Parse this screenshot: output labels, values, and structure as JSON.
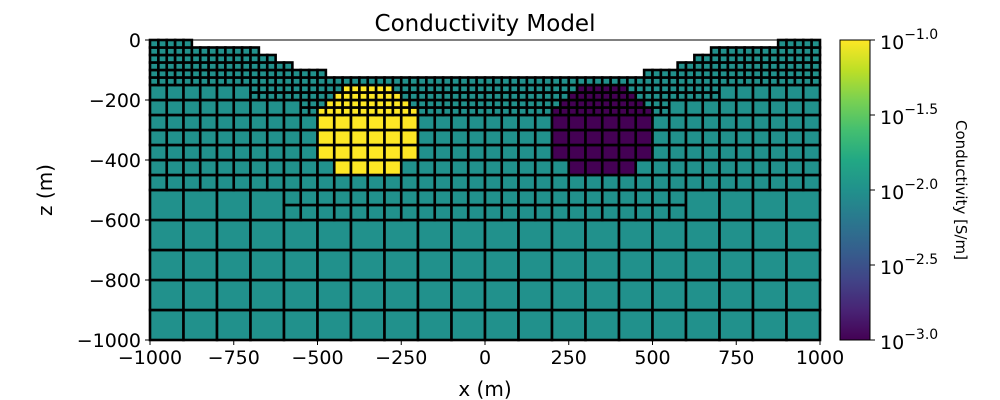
{
  "chart_data": {
    "type": "heatmap",
    "title": "Conductivity Model",
    "xlabel": "x (m)",
    "ylabel": "z (m)",
    "xlim": [
      -1000,
      1000
    ],
    "ylim": [
      -1000,
      0
    ],
    "xticks": [
      -1000,
      -750,
      -500,
      -250,
      0,
      250,
      500,
      750,
      1000
    ],
    "xtick_labels": [
      "−1000",
      "−750",
      "−500",
      "−250",
      "0",
      "250",
      "500",
      "750",
      "1000"
    ],
    "yticks": [
      0,
      -200,
      -400,
      -600,
      -800,
      -1000
    ],
    "ytick_labels": [
      "0",
      "−200",
      "−400",
      "−600",
      "−800",
      "−1000"
    ],
    "grid": false,
    "mesh": {
      "type": "tree",
      "cell_sizes": [
        25,
        50,
        100
      ],
      "finest_regions": [
        {
          "x": [
            -1000,
            1000
          ],
          "z": [
            -150,
            0
          ]
        },
        {
          "x": [
            -700,
            700
          ],
          "z": [
            -200,
            -150
          ]
        },
        {
          "x": [
            -550,
            550
          ],
          "z": [
            -250,
            -200
          ]
        }
      ],
      "medium_regions": [
        {
          "x": [
            -1000,
            1000
          ],
          "z": [
            -500,
            -150
          ]
        },
        {
          "x": [
            -600,
            600
          ],
          "z": [
            -600,
            -500
          ]
        }
      ],
      "cell_edge_color": "#000000"
    },
    "topography": [
      {
        "x": [
          -1000,
          -875
        ],
        "z": 0
      },
      {
        "x": [
          -875,
          -675
        ],
        "z": -25
      },
      {
        "x": [
          -675,
          -625
        ],
        "z": -50
      },
      {
        "x": [
          -625,
          -575
        ],
        "z": -75
      },
      {
        "x": [
          -575,
          -475
        ],
        "z": -100
      },
      {
        "x": [
          -475,
          475
        ],
        "z": -125
      },
      {
        "x": [
          475,
          575
        ],
        "z": -100
      },
      {
        "x": [
          575,
          625
        ],
        "z": -75
      },
      {
        "x": [
          625,
          675
        ],
        "z": -50
      },
      {
        "x": [
          675,
          875
        ],
        "z": -25
      },
      {
        "x": [
          875,
          1000
        ],
        "z": 0
      }
    ],
    "background_conductivity": 0.01,
    "bodies": [
      {
        "shape": "sphere",
        "center": [
          -350,
          -300
        ],
        "radius": 155,
        "conductivity": 0.1
      },
      {
        "shape": "sphere",
        "center": [
          350,
          -300
        ],
        "radius": 155,
        "conductivity": 0.001
      }
    ],
    "colorbar": {
      "label": "Conductivity [S/m]",
      "colormap": "viridis",
      "scale": "log",
      "range": [
        0.001,
        0.1
      ],
      "ticks": [
        {
          "base": "10",
          "exp": "−1.0"
        },
        {
          "base": "10",
          "exp": "−1.5"
        },
        {
          "base": "10",
          "exp": "−2.0"
        },
        {
          "base": "10",
          "exp": "−2.5"
        },
        {
          "base": "10",
          "exp": "−3.0"
        }
      ]
    }
  }
}
